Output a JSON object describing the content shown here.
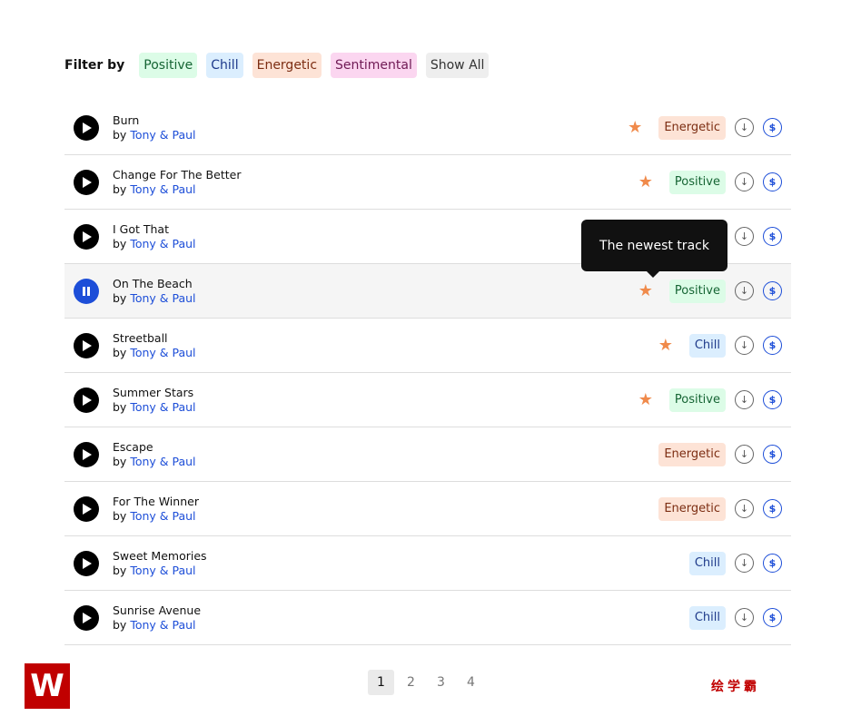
{
  "filter": {
    "label": "Filter by",
    "options": [
      "Positive",
      "Chill",
      "Energetic",
      "Sentimental",
      "Show All"
    ]
  },
  "tracks": [
    {
      "title": "Burn",
      "by": "by",
      "artist": "Tony & Paul",
      "tag": "Energetic",
      "star": true
    },
    {
      "title": "Change For The Better",
      "by": "by",
      "artist": "Tony & Paul",
      "tag": "Positive",
      "star": true
    },
    {
      "title": "I Got That",
      "by": "by",
      "artist": "Tony & Paul",
      "tag": "",
      "star": false
    },
    {
      "title": "On The Beach",
      "by": "by",
      "artist": "Tony & Paul",
      "tag": "Positive",
      "star": true,
      "playing": true
    },
    {
      "title": "Streetball",
      "by": "by",
      "artist": "Tony & Paul",
      "tag": "Chill",
      "star": true
    },
    {
      "title": "Summer Stars",
      "by": "by",
      "artist": "Tony & Paul",
      "tag": "Positive",
      "star": true
    },
    {
      "title": "Escape",
      "by": "by",
      "artist": "Tony & Paul",
      "tag": "Energetic",
      "star": false
    },
    {
      "title": "For The Winner",
      "by": "by",
      "artist": "Tony & Paul",
      "tag": "Energetic",
      "star": false
    },
    {
      "title": "Sweet Memories",
      "by": "by",
      "artist": "Tony & Paul",
      "tag": "Chill",
      "star": false
    },
    {
      "title": "Sunrise Avenue",
      "by": "by",
      "artist": "Tony & Paul",
      "tag": "Chill",
      "star": false
    }
  ],
  "tooltip": "The newest track",
  "pagination": {
    "pages": [
      "1",
      "2",
      "3",
      "4"
    ],
    "current": "1"
  },
  "watermark": "绘学霸",
  "logo": "W"
}
